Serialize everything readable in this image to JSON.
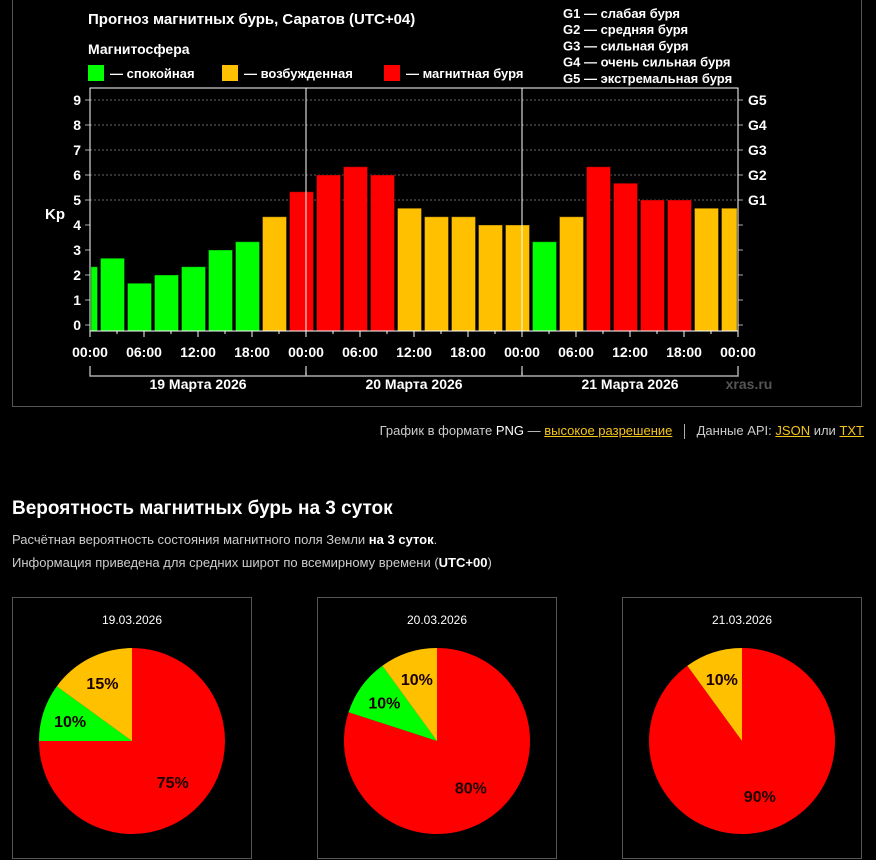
{
  "colors": {
    "quiet": "#00ff00",
    "excited": "#ffc000",
    "storm": "#ff0000",
    "background": "#000000",
    "link": "#f5c518"
  },
  "chart_data": [
    {
      "type": "bar",
      "title": "Прогноз магнитных бурь, Саратов (UTC+04)",
      "legend_title": "Магнитосфера",
      "legend": [
        {
          "label": "— спокойная",
          "color": "#00ff00"
        },
        {
          "label": "— возбужденная",
          "color": "#ffc000"
        },
        {
          "label": "— магнитная буря",
          "color": "#ff0000"
        }
      ],
      "g_scale_legend": [
        "G1 — слабая буря",
        "G2 — средняя буря",
        "G3 — сильная буря",
        "G4 — очень сильная буря",
        "G5 — экстремальная буря"
      ],
      "ylabel": "Kp",
      "ylim": [
        0,
        9
      ],
      "yticks": [
        "0",
        "1",
        "2",
        "3",
        "4",
        "5",
        "6",
        "7",
        "8",
        "9"
      ],
      "right_ticks": [
        {
          "value": 5,
          "label": "G1"
        },
        {
          "value": 6,
          "label": "G2"
        },
        {
          "value": 7,
          "label": "G3"
        },
        {
          "value": 8,
          "label": "G4"
        },
        {
          "value": 9,
          "label": "G5"
        }
      ],
      "xlim_hours": [
        0,
        72
      ],
      "xticks": [
        {
          "hour": 0,
          "label": "00:00"
        },
        {
          "hour": 6,
          "label": "06:00"
        },
        {
          "hour": 12,
          "label": "12:00"
        },
        {
          "hour": 18,
          "label": "18:00"
        },
        {
          "hour": 24,
          "label": "00:00"
        },
        {
          "hour": 30,
          "label": "06:00"
        },
        {
          "hour": 36,
          "label": "12:00"
        },
        {
          "hour": 42,
          "label": "18:00"
        },
        {
          "hour": 48,
          "label": "00:00"
        },
        {
          "hour": 54,
          "label": "06:00"
        },
        {
          "hour": 60,
          "label": "12:00"
        },
        {
          "hour": 66,
          "label": "18:00"
        },
        {
          "hour": 72,
          "label": "00:00"
        }
      ],
      "days": [
        {
          "start": 0,
          "end": 24,
          "label": "19 Марта 2026"
        },
        {
          "start": 24,
          "end": 48,
          "label": "20 Марта 2026"
        },
        {
          "start": 48,
          "end": 72,
          "label": "21 Марта 2026"
        }
      ],
      "watermark": "xras.ru",
      "grid": true,
      "bars": [
        {
          "start": -2,
          "end": 1,
          "kp": 2.33,
          "level": "quiet"
        },
        {
          "start": 1,
          "end": 4,
          "kp": 2.67,
          "level": "quiet"
        },
        {
          "start": 4,
          "end": 7,
          "kp": 1.67,
          "level": "quiet"
        },
        {
          "start": 7,
          "end": 10,
          "kp": 2.0,
          "level": "quiet"
        },
        {
          "start": 10,
          "end": 13,
          "kp": 2.33,
          "level": "quiet"
        },
        {
          "start": 13,
          "end": 16,
          "kp": 3.0,
          "level": "quiet"
        },
        {
          "start": 16,
          "end": 19,
          "kp": 3.33,
          "level": "quiet"
        },
        {
          "start": 19,
          "end": 22,
          "kp": 4.33,
          "level": "excited"
        },
        {
          "start": 22,
          "end": 25,
          "kp": 5.33,
          "level": "storm"
        },
        {
          "start": 25,
          "end": 28,
          "kp": 6.0,
          "level": "storm"
        },
        {
          "start": 28,
          "end": 31,
          "kp": 6.33,
          "level": "storm"
        },
        {
          "start": 31,
          "end": 34,
          "kp": 6.0,
          "level": "storm"
        },
        {
          "start": 34,
          "end": 37,
          "kp": 4.67,
          "level": "excited"
        },
        {
          "start": 37,
          "end": 40,
          "kp": 4.33,
          "level": "excited"
        },
        {
          "start": 40,
          "end": 43,
          "kp": 4.33,
          "level": "excited"
        },
        {
          "start": 43,
          "end": 46,
          "kp": 4.0,
          "level": "excited"
        },
        {
          "start": 46,
          "end": 49,
          "kp": 4.0,
          "level": "excited"
        },
        {
          "start": 49,
          "end": 52,
          "kp": 3.33,
          "level": "quiet"
        },
        {
          "start": 52,
          "end": 55,
          "kp": 4.33,
          "level": "excited"
        },
        {
          "start": 55,
          "end": 58,
          "kp": 6.33,
          "level": "storm"
        },
        {
          "start": 58,
          "end": 61,
          "kp": 5.67,
          "level": "storm"
        },
        {
          "start": 61,
          "end": 64,
          "kp": 5.0,
          "level": "storm"
        },
        {
          "start": 64,
          "end": 67,
          "kp": 5.0,
          "level": "storm"
        },
        {
          "start": 67,
          "end": 70,
          "kp": 4.67,
          "level": "excited"
        },
        {
          "start": 70,
          "end": 73,
          "kp": 4.67,
          "level": "excited"
        }
      ]
    },
    {
      "type": "pie",
      "title": "19.03.2026",
      "slices": [
        {
          "level": "storm",
          "value": 75,
          "label": "75%"
        },
        {
          "level": "quiet",
          "value": 10,
          "label": "10%"
        },
        {
          "level": "excited",
          "value": 15,
          "label": "15%"
        }
      ]
    },
    {
      "type": "pie",
      "title": "20.03.2026",
      "slices": [
        {
          "level": "storm",
          "value": 80,
          "label": "80%"
        },
        {
          "level": "quiet",
          "value": 10,
          "label": "10%"
        },
        {
          "level": "excited",
          "value": 10,
          "label": "10%"
        }
      ]
    },
    {
      "type": "pie",
      "title": "21.03.2026",
      "slices": [
        {
          "level": "storm",
          "value": 90,
          "label": "90%"
        },
        {
          "level": "quiet",
          "value": 0,
          "label": ""
        },
        {
          "level": "excited",
          "value": 10,
          "label": "10%"
        }
      ]
    }
  ],
  "links": {
    "png_prefix": "График в формате",
    "png_word": "PNG",
    "png_dash": "—",
    "hires_link": "высокое разрешение",
    "api_prefix": "Данные API:",
    "json_link": "JSON",
    "or": "или",
    "txt_link": "TXT"
  },
  "probability": {
    "heading": "Вероятность магнитных бурь на 3 суток",
    "line1_prefix": "Расчётная вероятность состояния магнитного поля Земли ",
    "line1_bold": "на 3 суток",
    "line1_suffix": ".",
    "line2_prefix": "Информация приведена для средних широт по всемирному времени (",
    "line2_bold": "UTC+00",
    "line2_suffix": ")"
  }
}
